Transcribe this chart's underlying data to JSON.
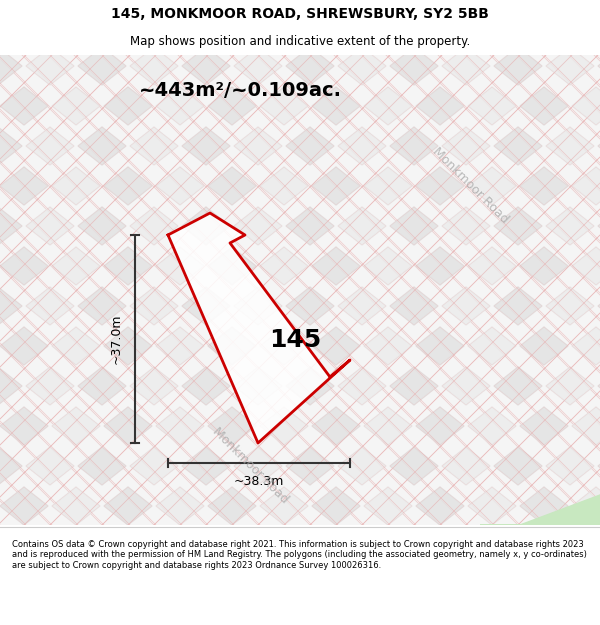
{
  "title_line1": "145, MONKMOOR ROAD, SHREWSBURY, SY2 5BB",
  "title_line2": "Map shows position and indicative extent of the property.",
  "area_text": "~443m²/~0.109ac.",
  "property_label": "145",
  "dim_height": "~37.0m",
  "dim_width": "~38.3m",
  "road_label_upper": "Monkmoor Road",
  "road_label_lower": "Monkmoor Road",
  "footer_text": "Contains OS data © Crown copyright and database right 2021. This information is subject to Crown copyright and database rights 2023 and is reproduced with the permission of HM Land Registry. The polygons (including the associated geometry, namely x, y co-ordinates) are subject to Crown copyright and database rights 2023 Ordnance Survey 100026316.",
  "bg_color": "#f5f5f5",
  "tile_color_light": "#e8e8e8",
  "tile_color_dark": "#d8d8d8",
  "tile_line_color": "#e8c0c0",
  "property_fill": "white",
  "property_edge": "#cc0000",
  "dim_line_color": "#333333",
  "road_text_color": "#aaaaaa",
  "green_patch": "#c8e8c0",
  "header_bg": "#ffffff",
  "footer_bg": "#ffffff"
}
